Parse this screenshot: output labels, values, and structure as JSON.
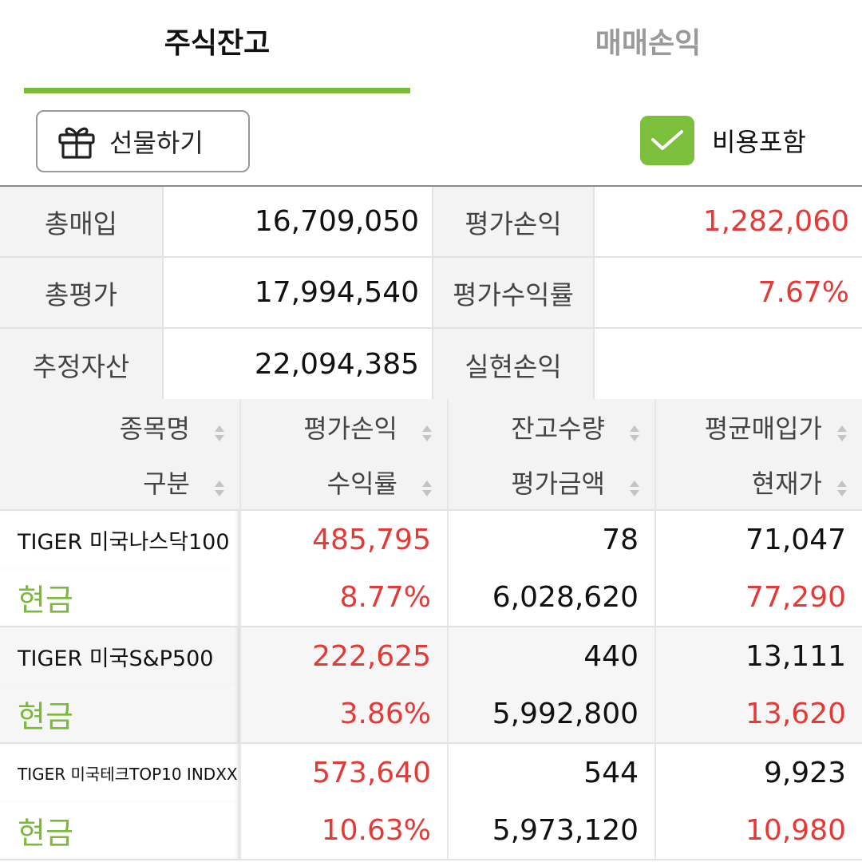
{
  "tabs": [
    {
      "label": "주식잔고",
      "active": true
    },
    {
      "label": "매매손익",
      "active": false
    }
  ],
  "toolbar": {
    "gift_label": "선물하기",
    "include_cost_label": "비용포함",
    "include_cost_checked": true,
    "accent_color": "#7bbf3c"
  },
  "summary": {
    "total_purchase_label": "총매입",
    "total_purchase": "16,709,050",
    "eval_pl_label": "평가손익",
    "eval_pl": "1,282,060",
    "total_eval_label": "총평가",
    "total_eval": "17,994,540",
    "eval_return_label": "평가수익률",
    "eval_return": "7.67%",
    "est_assets_label": "추정자산",
    "est_assets": "22,094,385",
    "realized_pl_label": "실현손익",
    "realized_pl": ""
  },
  "table": {
    "headers_top": [
      "종목명",
      "평가손익",
      "잔고수량",
      "평균매입가"
    ],
    "headers_bottom": [
      "구분",
      "수익률",
      "평가금액",
      "현재가"
    ],
    "rows": [
      {
        "name": "TIGER 미국나스닥100",
        "kind": "현금",
        "eval_pl": "485,795",
        "return": "8.77%",
        "qty": "78",
        "eval_amount": "6,028,620",
        "avg_price": "71,047",
        "current_price": "77,290"
      },
      {
        "name": "TIGER 미국S&P500",
        "kind": "현금",
        "eval_pl": "222,625",
        "return": "3.86%",
        "qty": "440",
        "eval_amount": "5,992,800",
        "avg_price": "13,111",
        "current_price": "13,620"
      },
      {
        "name": "TIGER 미국테크TOP10 INDXX",
        "kind": "현금",
        "eval_pl": "573,640",
        "return": "10.63%",
        "qty": "544",
        "eval_amount": "5,973,120",
        "avg_price": "9,923",
        "current_price": "10,980"
      }
    ]
  },
  "colors": {
    "positive": "#e53935",
    "cash": "#7ab93a",
    "tab_underline": "#7ab93a"
  },
  "icons": {
    "gift": "gift-icon",
    "check": "check-icon",
    "sort": "sort-icon"
  }
}
